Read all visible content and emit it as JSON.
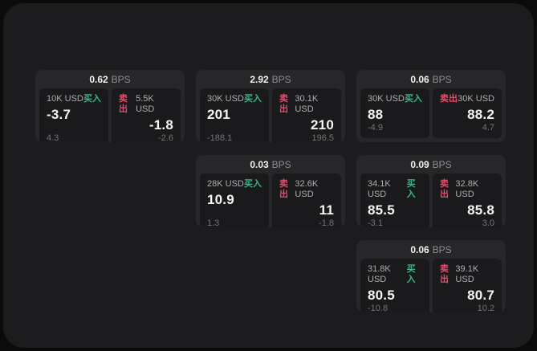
{
  "labels": {
    "buy": "买入",
    "sell": "卖出",
    "bps": "BPS"
  },
  "colors": {
    "background": "#0b0b0c",
    "panel": "#1c1c1e",
    "card": "#27272a",
    "tile": "#1a1a1c",
    "buy_green": "#2ebd85",
    "sell_red": "#e14d6d"
  },
  "cards": [
    {
      "bps": "0.62",
      "buy": {
        "amount": "10K USD",
        "value": "-3.7",
        "delta": "4.3"
      },
      "sell": {
        "amount": "5.5K USD",
        "value": "-1.8",
        "delta": "-2.6"
      }
    },
    {
      "bps": "2.92",
      "buy": {
        "amount": "30K USD",
        "value": "201",
        "delta": "-188.1"
      },
      "sell": {
        "amount": "30.1K USD",
        "value": "210",
        "delta": "196.5"
      }
    },
    {
      "bps": "0.06",
      "buy": {
        "amount": "30K USD",
        "value": "88",
        "delta": "-4.9"
      },
      "sell": {
        "amount": "30K USD",
        "value": "88.2",
        "delta": "4.7"
      }
    },
    {
      "bps": "0.03",
      "buy": {
        "amount": "28K USD",
        "value": "10.9",
        "delta": "1.3"
      },
      "sell": {
        "amount": "32.6K USD",
        "value": "11",
        "delta": "-1.8"
      }
    },
    {
      "bps": "0.09",
      "buy": {
        "amount": "34.1K USD",
        "value": "85.5",
        "delta": "-3.1"
      },
      "sell": {
        "amount": "32.8K USD",
        "value": "85.8",
        "delta": "3.0"
      }
    },
    {
      "bps": "0.06",
      "buy": {
        "amount": "31.8K USD",
        "value": "80.5",
        "delta": "-10.8"
      },
      "sell": {
        "amount": "39.1K USD",
        "value": "80.7",
        "delta": "10.2"
      }
    }
  ]
}
